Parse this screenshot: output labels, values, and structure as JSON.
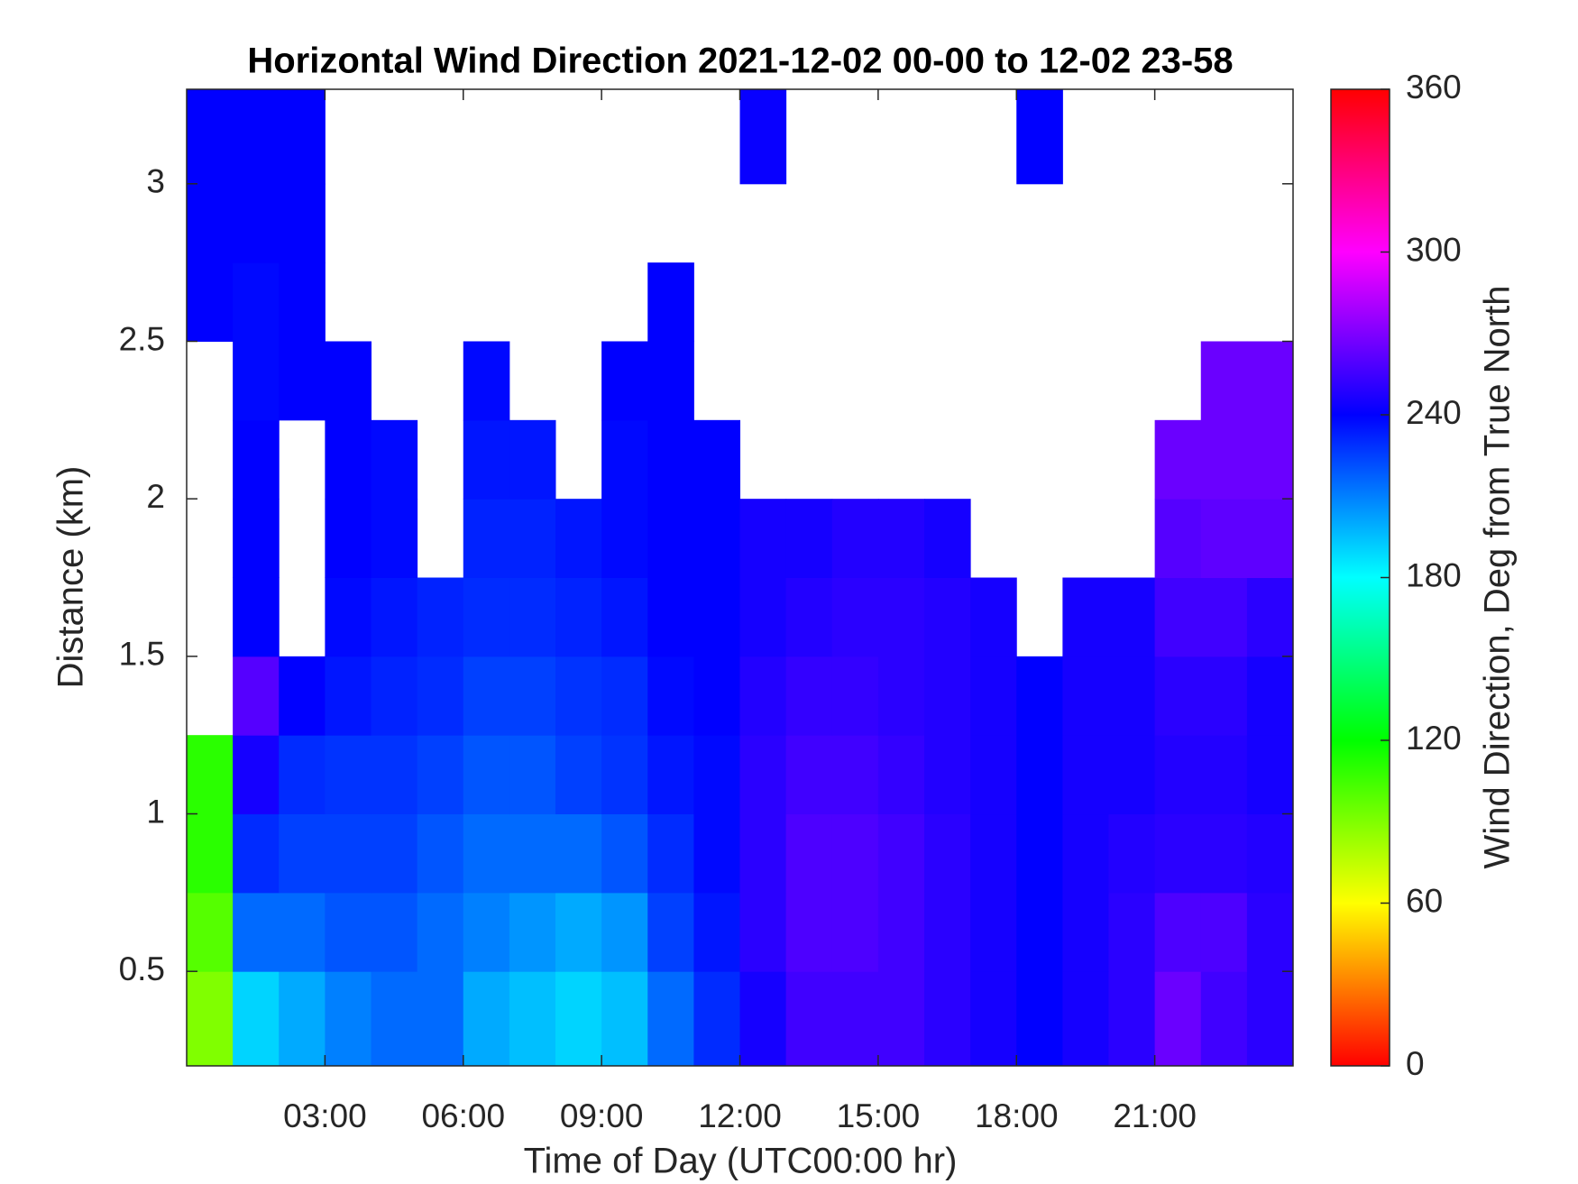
{
  "chart_data": {
    "type": "heatmap",
    "title": "Horizontal Wind Direction 2021-12-02 00-00 to 12-02 23-58",
    "x_label": "Time of Day (UTC00:00 hr)",
    "y_label": "Distance (km)",
    "colorbar_label": "Wind Direction, Deg from True North",
    "colormap": "hsv",
    "xbins": [
      0,
      1,
      2,
      3,
      4,
      5,
      6,
      7,
      8,
      9,
      10,
      11,
      12,
      13,
      14,
      15,
      16,
      17,
      18,
      19,
      20,
      21,
      22,
      23,
      24
    ],
    "ybins": [
      0.2,
      0.5,
      0.75,
      1.0,
      1.25,
      1.5,
      1.75,
      2.0,
      2.25,
      2.5,
      2.75,
      3.0,
      3.3
    ],
    "z": [
      [
        90,
        190,
        200,
        210,
        215,
        215,
        200,
        195,
        190,
        195,
        215,
        230,
        245,
        255,
        255,
        255,
        250,
        245,
        240,
        245,
        250,
        265,
        255,
        250
      ],
      [
        100,
        215,
        215,
        220,
        220,
        215,
        210,
        205,
        200,
        205,
        225,
        235,
        250,
        258,
        258,
        255,
        250,
        245,
        240,
        245,
        250,
        258,
        258,
        250
      ],
      [
        110,
        230,
        225,
        225,
        225,
        220,
        215,
        215,
        215,
        220,
        230,
        238,
        250,
        258,
        258,
        255,
        250,
        245,
        240,
        245,
        248,
        250,
        250,
        248
      ],
      [
        110,
        245,
        230,
        228,
        228,
        225,
        220,
        220,
        225,
        228,
        235,
        238,
        250,
        255,
        255,
        252,
        248,
        245,
        240,
        245,
        245,
        248,
        248,
        245
      ],
      [
        null,
        260,
        240,
        235,
        232,
        230,
        225,
        225,
        228,
        230,
        238,
        240,
        248,
        252,
        252,
        250,
        248,
        245,
        240,
        245,
        245,
        250,
        250,
        245
      ],
      [
        null,
        240,
        null,
        238,
        235,
        232,
        230,
        230,
        232,
        235,
        240,
        240,
        245,
        248,
        250,
        250,
        248,
        245,
        null,
        245,
        245,
        255,
        255,
        250
      ],
      [
        null,
        240,
        null,
        240,
        238,
        null,
        232,
        232,
        235,
        238,
        240,
        240,
        245,
        245,
        248,
        248,
        245,
        null,
        null,
        null,
        null,
        260,
        262,
        262
      ],
      [
        null,
        240,
        null,
        240,
        238,
        null,
        235,
        235,
        null,
        238,
        240,
        240,
        null,
        null,
        null,
        null,
        null,
        null,
        null,
        null,
        null,
        265,
        265,
        265
      ],
      [
        null,
        238,
        240,
        240,
        null,
        null,
        238,
        null,
        null,
        240,
        240,
        null,
        null,
        null,
        null,
        null,
        null,
        null,
        null,
        null,
        null,
        null,
        265,
        265
      ],
      [
        240,
        238,
        240,
        null,
        null,
        null,
        null,
        null,
        null,
        null,
        240,
        null,
        null,
        null,
        null,
        null,
        null,
        null,
        null,
        null,
        null,
        null,
        null,
        null
      ],
      [
        240,
        240,
        240,
        null,
        null,
        null,
        null,
        null,
        null,
        null,
        null,
        null,
        null,
        null,
        null,
        null,
        null,
        null,
        null,
        null,
        null,
        null,
        null,
        null
      ],
      [
        240,
        240,
        240,
        null,
        null,
        null,
        null,
        null,
        null,
        null,
        null,
        null,
        242,
        null,
        null,
        null,
        null,
        null,
        240,
        null,
        null,
        null,
        null,
        null
      ]
    ],
    "xlim": [
      0,
      24
    ],
    "xticks": [
      {
        "value": 3,
        "label": "03:00"
      },
      {
        "value": 6,
        "label": "06:00"
      },
      {
        "value": 9,
        "label": "09:00"
      },
      {
        "value": 12,
        "label": "12:00"
      },
      {
        "value": 15,
        "label": "15:00"
      },
      {
        "value": 18,
        "label": "18:00"
      },
      {
        "value": 21,
        "label": "21:00"
      }
    ],
    "ylim": [
      0.2,
      3.3
    ],
    "yticks": [
      0.5,
      1,
      1.5,
      2,
      2.5,
      3
    ],
    "clim": [
      0,
      360
    ],
    "cticks": [
      0,
      60,
      120,
      180,
      240,
      300,
      360
    ]
  }
}
